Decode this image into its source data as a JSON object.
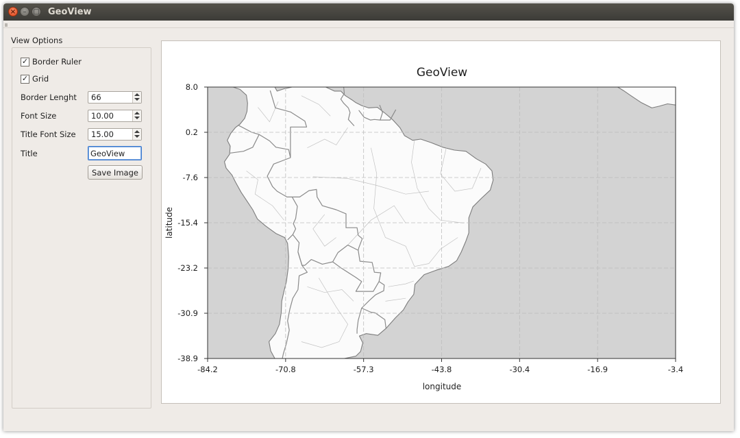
{
  "window": {
    "title": "GeoView"
  },
  "options": {
    "group_label": "View Options",
    "border_ruler": {
      "label": "Border Ruler",
      "checked": true
    },
    "grid": {
      "label": "Grid",
      "checked": true
    },
    "border_length": {
      "label": "Border Lenght",
      "value": "66"
    },
    "font_size": {
      "label": "Font Size",
      "value": "10.00"
    },
    "title_font_size": {
      "label": "Title Font Size",
      "value": "15.00"
    },
    "title": {
      "label": "Title",
      "value": "GeoView"
    },
    "save_label": "Save Image"
  },
  "chart_data": {
    "type": "map",
    "title": "GeoView",
    "xlabel": "longitude",
    "ylabel": "latitude",
    "xlim": [
      -84.2,
      -3.4
    ],
    "ylim": [
      -38.9,
      8.0
    ],
    "xticks": [
      "-84.2",
      "-70.8",
      "-57.3",
      "-43.8",
      "-30.4",
      "-16.9",
      "-3.4"
    ],
    "yticks": [
      "8.0",
      "0.2",
      "-7.6",
      "-15.4",
      "-23.2",
      "-30.9",
      "-38.9"
    ],
    "grid": true,
    "colors": {
      "ocean": "#d3d3d3",
      "land": "#fbfbfb",
      "border": "#8a8a8a"
    },
    "land": [
      {
        "name": "south-america",
        "points": [
          [
            -79.8,
            8.0
          ],
          [
            -77.5,
            8.0
          ],
          [
            -75.5,
            8.0
          ],
          [
            -72.6,
            8.0
          ],
          [
            -72.2,
            7.3
          ],
          [
            -71.0,
            7.7
          ],
          [
            -69.6,
            8.0
          ],
          [
            -67.4,
            8.0
          ],
          [
            -65.8,
            8.0
          ],
          [
            -63.8,
            8.0
          ],
          [
            -62.3,
            7.3
          ],
          [
            -61.2,
            7.3
          ],
          [
            -60.4,
            6.5
          ],
          [
            -59.3,
            5.8
          ],
          [
            -58.6,
            5.3
          ],
          [
            -57.6,
            4.8
          ],
          [
            -56.4,
            4.4
          ],
          [
            -54.9,
            4.5
          ],
          [
            -53.6,
            3.5
          ],
          [
            -52.2,
            2.3
          ],
          [
            -51.0,
            1.0
          ],
          [
            -50.2,
            -0.4
          ],
          [
            -48.8,
            -1.2
          ],
          [
            -47.4,
            -1.0
          ],
          [
            -45.6,
            -1.6
          ],
          [
            -43.6,
            -2.4
          ],
          [
            -41.6,
            -2.9
          ],
          [
            -39.6,
            -3.1
          ],
          [
            -37.8,
            -4.4
          ],
          [
            -36.2,
            -5.3
          ],
          [
            -35.1,
            -6.5
          ],
          [
            -34.9,
            -8.1
          ],
          [
            -35.4,
            -9.8
          ],
          [
            -36.9,
            -11.2
          ],
          [
            -38.4,
            -12.7
          ],
          [
            -39.1,
            -14.6
          ],
          [
            -39.1,
            -17.2
          ],
          [
            -39.6,
            -18.6
          ],
          [
            -40.4,
            -20.5
          ],
          [
            -41.2,
            -22.0
          ],
          [
            -42.6,
            -23.0
          ],
          [
            -44.6,
            -23.6
          ],
          [
            -46.8,
            -24.4
          ],
          [
            -48.4,
            -26.1
          ],
          [
            -48.6,
            -27.8
          ],
          [
            -49.6,
            -29.1
          ],
          [
            -50.4,
            -30.5
          ],
          [
            -51.8,
            -31.9
          ],
          [
            -53.4,
            -33.7
          ],
          [
            -54.8,
            -34.9
          ],
          [
            -56.8,
            -34.6
          ],
          [
            -58.0,
            -35.0
          ],
          [
            -57.4,
            -36.2
          ],
          [
            -57.8,
            -37.7
          ],
          [
            -58.6,
            -38.5
          ],
          [
            -60.6,
            -38.9
          ],
          [
            -62.9,
            -38.9
          ],
          [
            -65.2,
            -38.9
          ],
          [
            -67.4,
            -38.9
          ],
          [
            -69.4,
            -38.9
          ],
          [
            -71.8,
            -38.9
          ],
          [
            -72.6,
            -38.9
          ],
          [
            -73.3,
            -37.6
          ],
          [
            -73.6,
            -36.0
          ],
          [
            -72.5,
            -34.6
          ],
          [
            -71.8,
            -33.0
          ],
          [
            -71.5,
            -31.0
          ],
          [
            -71.4,
            -29.0
          ],
          [
            -71.0,
            -27.2
          ],
          [
            -70.6,
            -25.6
          ],
          [
            -70.3,
            -23.4
          ],
          [
            -70.2,
            -21.3
          ],
          [
            -70.4,
            -19.0
          ],
          [
            -70.9,
            -18.0
          ],
          [
            -72.4,
            -17.3
          ],
          [
            -74.2,
            -16.0
          ],
          [
            -75.6,
            -14.8
          ],
          [
            -76.4,
            -13.2
          ],
          [
            -77.2,
            -12.0
          ],
          [
            -78.4,
            -10.2
          ],
          [
            -79.4,
            -8.4
          ],
          [
            -80.0,
            -7.2
          ],
          [
            -81.0,
            -6.0
          ],
          [
            -81.3,
            -4.9
          ],
          [
            -80.4,
            -3.6
          ],
          [
            -80.3,
            -2.2
          ],
          [
            -80.8,
            -1.2
          ],
          [
            -80.2,
            0.0
          ],
          [
            -79.4,
            1.0
          ],
          [
            -78.6,
            1.6
          ],
          [
            -77.8,
            2.6
          ],
          [
            -77.4,
            3.8
          ],
          [
            -77.3,
            5.2
          ],
          [
            -77.5,
            6.6
          ],
          [
            -78.6,
            7.6
          ]
        ]
      },
      {
        "name": "africa",
        "points": [
          [
            -17.2,
            8.0
          ],
          [
            -3.4,
            8.0
          ],
          [
            -3.4,
            4.9
          ],
          [
            -4.8,
            5.1
          ],
          [
            -6.2,
            4.7
          ],
          [
            -7.5,
            4.4
          ],
          [
            -9.3,
            5.3
          ],
          [
            -11.1,
            6.5
          ],
          [
            -12.4,
            7.4
          ],
          [
            -13.4,
            8.0
          ]
        ]
      }
    ],
    "borders": [
      [
        [
          -73.4,
          7.4
        ],
        [
          -72.5,
          4.4
        ],
        [
          -69.9,
          3.7
        ],
        [
          -67.4,
          2.1
        ],
        [
          -67.1,
          1.1
        ],
        [
          -69.9,
          1.1
        ],
        [
          -69.9,
          -1.6
        ],
        [
          -69.9,
          -4.2
        ]
      ],
      [
        [
          -78.9,
          1.4
        ],
        [
          -76.6,
          0.2
        ],
        [
          -75.3,
          -0.2
        ]
      ],
      [
        [
          -80.3,
          -3.4
        ],
        [
          -78.0,
          -3.1
        ],
        [
          -76.4,
          -2.4
        ],
        [
          -75.3,
          -0.2
        ],
        [
          -73.5,
          -1.3
        ],
        [
          -72.4,
          -2.4
        ],
        [
          -70.2,
          -2.8
        ],
        [
          -69.9,
          -4.2
        ],
        [
          -72.8,
          -5.3
        ],
        [
          -73.9,
          -7.4
        ],
        [
          -73.0,
          -9.2
        ],
        [
          -72.2,
          -10.0
        ],
        [
          -70.5,
          -11.0
        ],
        [
          -69.6,
          -11.0
        ],
        [
          -68.7,
          -12.6
        ],
        [
          -69.0,
          -14.7
        ],
        [
          -69.4,
          -15.6
        ],
        [
          -69.0,
          -16.5
        ],
        [
          -69.5,
          -17.5
        ],
        [
          -70.4,
          -18.4
        ]
      ],
      [
        [
          -69.6,
          -11.0
        ],
        [
          -68.3,
          -11.0
        ],
        [
          -66.7,
          -9.9
        ],
        [
          -65.4,
          -9.7
        ],
        [
          -65.3,
          -11.0
        ],
        [
          -64.4,
          -12.5
        ],
        [
          -62.0,
          -13.2
        ],
        [
          -60.3,
          -13.9
        ],
        [
          -60.3,
          -16.3
        ],
        [
          -58.4,
          -16.3
        ],
        [
          -58.2,
          -17.6
        ],
        [
          -57.5,
          -18.2
        ],
        [
          -58.1,
          -19.8
        ],
        [
          -58.2,
          -20.2
        ]
      ],
      [
        [
          -69.5,
          -17.5
        ],
        [
          -68.4,
          -18.9
        ],
        [
          -68.6,
          -20.5
        ],
        [
          -67.9,
          -22.8
        ],
        [
          -67.4,
          -22.8
        ]
      ],
      [
        [
          -67.4,
          -22.8
        ],
        [
          -66.3,
          -21.8
        ],
        [
          -64.4,
          -22.6
        ],
        [
          -62.6,
          -22.2
        ],
        [
          -61.7,
          -20.6
        ],
        [
          -60.0,
          -19.3
        ],
        [
          -58.2,
          -20.2
        ]
      ],
      [
        [
          -68.6,
          -20.5
        ],
        [
          -67.9,
          -22.8
        ],
        [
          -67.0,
          -24.0
        ],
        [
          -68.4,
          -24.6
        ],
        [
          -68.6,
          -27.0
        ],
        [
          -69.5,
          -28.5
        ],
        [
          -70.0,
          -30.4
        ],
        [
          -70.4,
          -32.4
        ],
        [
          -70.1,
          -34.0
        ],
        [
          -70.6,
          -36.3
        ],
        [
          -71.1,
          -38.0
        ],
        [
          -71.3,
          -38.9
        ]
      ],
      [
        [
          -62.6,
          -22.2
        ],
        [
          -61.1,
          -23.3
        ],
        [
          -58.6,
          -24.9
        ],
        [
          -57.6,
          -25.6
        ],
        [
          -58.6,
          -27.3
        ],
        [
          -55.6,
          -27.3
        ],
        [
          -54.6,
          -25.6
        ]
      ],
      [
        [
          -58.2,
          -20.2
        ],
        [
          -57.9,
          -22.1
        ],
        [
          -55.8,
          -22.3
        ],
        [
          -55.4,
          -24.0
        ],
        [
          -54.3,
          -24.1
        ],
        [
          -54.6,
          -25.6
        ]
      ],
      [
        [
          -54.6,
          -25.6
        ],
        [
          -53.7,
          -26.2
        ],
        [
          -53.8,
          -27.2
        ],
        [
          -55.2,
          -27.9
        ],
        [
          -56.3,
          -28.9
        ],
        [
          -57.6,
          -30.2
        ],
        [
          -56.0,
          -30.9
        ],
        [
          -55.3,
          -31.0
        ],
        [
          -53.6,
          -32.2
        ],
        [
          -53.4,
          -33.7
        ]
      ],
      [
        [
          -57.6,
          -30.2
        ],
        [
          -58.2,
          -32.3
        ],
        [
          -58.4,
          -33.9
        ],
        [
          -58.4,
          -34.6
        ]
      ],
      [
        [
          -60.7,
          8.0
        ],
        [
          -60.6,
          6.9
        ],
        [
          -61.2,
          5.9
        ],
        [
          -60.7,
          5.2
        ],
        [
          -59.9,
          4.4
        ]
      ],
      [
        [
          -59.9,
          4.4
        ],
        [
          -59.6,
          3.6
        ],
        [
          -59.9,
          2.4
        ],
        [
          -58.9,
          1.3
        ]
      ],
      [
        [
          -58.1,
          4.0
        ],
        [
          -57.2,
          2.8
        ],
        [
          -56.1,
          2.3
        ],
        [
          -55.4,
          2.4
        ],
        [
          -54.4,
          2.3
        ],
        [
          -54.0,
          3.6
        ],
        [
          -54.5,
          4.9
        ]
      ],
      [
        [
          -54.4,
          2.3
        ],
        [
          -52.7,
          2.3
        ],
        [
          -51.7,
          4.1
        ]
      ]
    ],
    "subborders": [
      [
        [
          -60.0,
          -19.3
        ],
        [
          -56.0,
          -15.0
        ],
        [
          -52.0,
          -12.5
        ],
        [
          -50.0,
          -15.5
        ]
      ],
      [
        [
          -66.0,
          -7.5
        ],
        [
          -60.0,
          -7.8
        ],
        [
          -55.0,
          -9.0
        ],
        [
          -50.0,
          -10.5
        ],
        [
          -46.0,
          -10.0
        ]
      ],
      [
        [
          -56.0,
          -2.5
        ],
        [
          -55.0,
          -7.0
        ],
        [
          -55.5,
          -13.0
        ],
        [
          -53.5,
          -18.0
        ],
        [
          -50.0,
          -19.5
        ],
        [
          -48.5,
          -23.0
        ],
        [
          -46.0,
          -22.5
        ],
        [
          -44.0,
          -20.0
        ],
        [
          -41.0,
          -18.0
        ]
      ],
      [
        [
          -48.5,
          -1.2
        ],
        [
          -49.0,
          -5.0
        ],
        [
          -48.0,
          -9.5
        ],
        [
          -46.0,
          -13.0
        ],
        [
          -44.0,
          -15.0
        ],
        [
          -40.0,
          -15.5
        ]
      ],
      [
        [
          -43.0,
          -2.5
        ],
        [
          -44.0,
          -7.0
        ],
        [
          -41.5,
          -10.0
        ],
        [
          -38.5,
          -9.5
        ],
        [
          -37.0,
          -6.0
        ]
      ],
      [
        [
          -53.0,
          -26.5
        ],
        [
          -50.0,
          -26.0
        ],
        [
          -48.6,
          -25.5
        ]
      ],
      [
        [
          -53.5,
          -29.0
        ],
        [
          -50.0,
          -28.5
        ]
      ],
      [
        [
          -65.0,
          -25.0
        ],
        [
          -62.0,
          -30.0
        ],
        [
          -60.0,
          -33.0
        ],
        [
          -61.5,
          -36.0
        ],
        [
          -64.5,
          -37.0
        ],
        [
          -68.0,
          -36.0
        ]
      ],
      [
        [
          -67.0,
          -26.5
        ],
        [
          -64.0,
          -27.5
        ],
        [
          -61.0,
          -27.0
        ],
        [
          -59.0,
          -29.0
        ]
      ],
      [
        [
          -75.5,
          4.5
        ],
        [
          -73.5,
          2.0
        ],
        [
          -72.0,
          5.5
        ]
      ],
      [
        [
          -68.0,
          6.5
        ],
        [
          -65.0,
          5.0
        ],
        [
          -63.0,
          3.0
        ]
      ],
      [
        [
          -77.5,
          -6.5
        ],
        [
          -75.5,
          -8.0
        ],
        [
          -76.0,
          -10.5
        ],
        [
          -73.0,
          -12.5
        ],
        [
          -71.0,
          -15.0
        ]
      ],
      [
        [
          -64.0,
          -14.0
        ],
        [
          -66.0,
          -16.5
        ],
        [
          -64.0,
          -19.5
        ],
        [
          -62.0,
          -18.0
        ]
      ],
      [
        [
          -60.0,
          1.0
        ],
        [
          -62.0,
          -2.0
        ],
        [
          -64.0,
          -1.0
        ],
        [
          -67.0,
          -2.5
        ]
      ]
    ]
  }
}
